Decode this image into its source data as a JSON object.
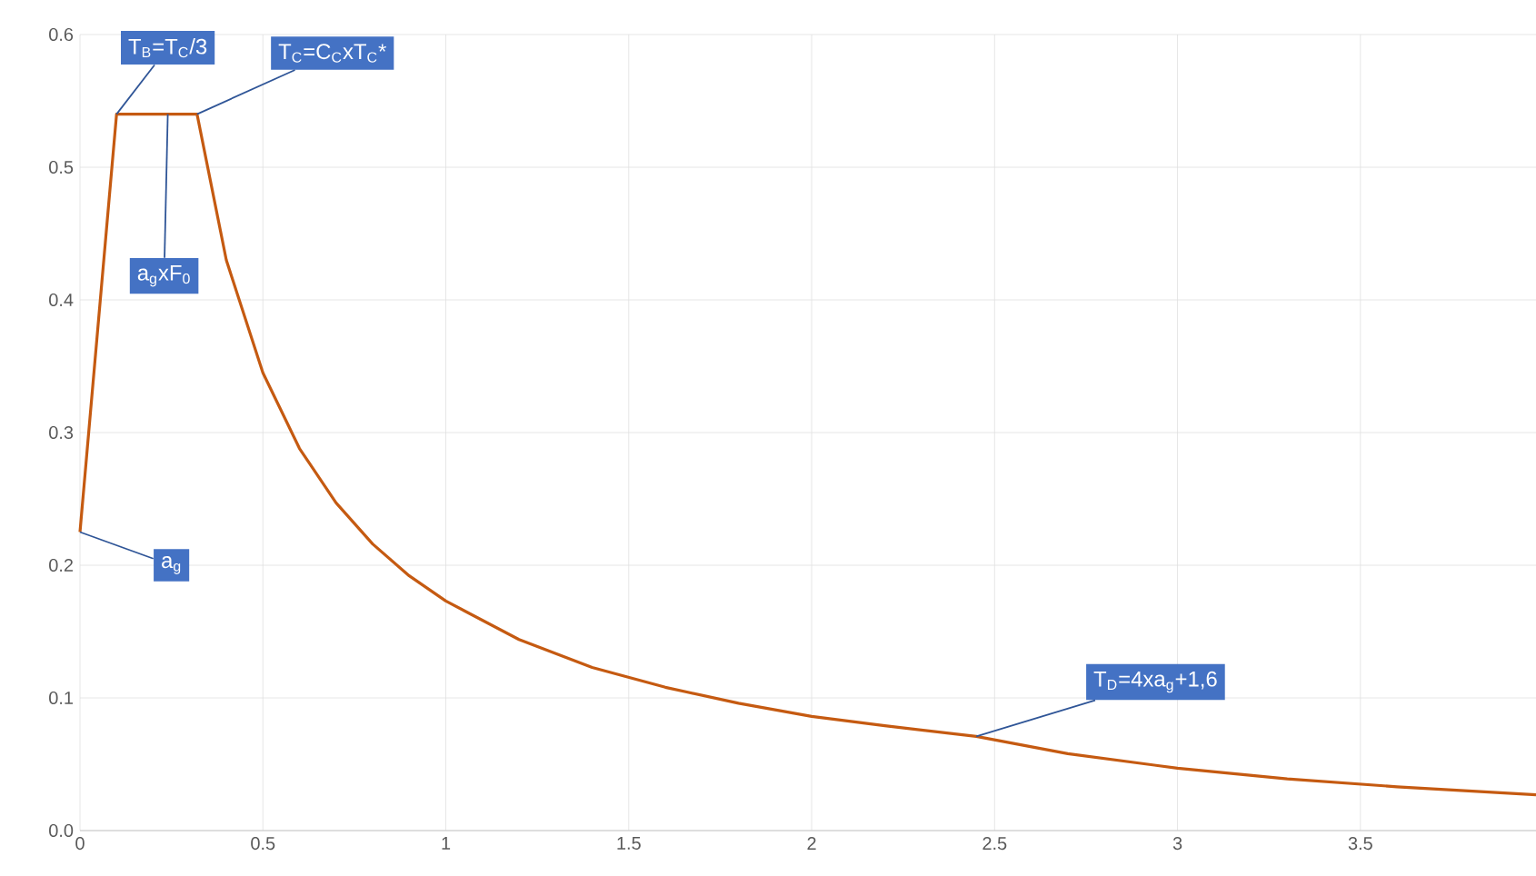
{
  "chart_data": {
    "type": "line",
    "x": [
      0,
      0.1,
      0.32,
      0.4,
      0.5,
      0.6,
      0.7,
      0.8,
      0.9,
      1.0,
      1.2,
      1.4,
      1.6,
      1.8,
      2.0,
      2.2,
      2.45,
      2.7,
      3.0,
      3.3,
      3.6,
      3.98
    ],
    "series": [
      {
        "color": "#c55a11",
        "values": [
          0.225,
          0.54,
          0.54,
          0.43,
          0.345,
          0.288,
          0.247,
          0.216,
          0.192,
          0.173,
          0.144,
          0.123,
          0.108,
          0.096,
          0.086,
          0.079,
          0.071,
          0.058,
          0.047,
          0.039,
          0.033,
          0.027
        ]
      }
    ],
    "xlim": [
      0,
      3.98
    ],
    "xticks": [
      0,
      0.5,
      1,
      1.5,
      2,
      2.5,
      3,
      3.5
    ],
    "ylim": [
      0,
      0.6
    ],
    "yticks": [
      {
        "value": 0,
        "label": "0.0"
      },
      0.1,
      0.2,
      0.3,
      0.4,
      0.5,
      0.6
    ],
    "grid": true,
    "marker": "none",
    "line_style": "solid",
    "annotations": [
      {
        "text": "T$_{B}$=T$_{C}$/3",
        "x": 0.1,
        "y": 0.54
      },
      {
        "text": "T$_{C}$=C$_{C}$xT$_{C}$*",
        "x": 0.32,
        "y": 0.54
      },
      {
        "text": "a$_{g}$xF$_{0}$",
        "x": 0.24,
        "y": 0.54
      },
      {
        "text": "a$_{g}$",
        "x": 0,
        "y": 0.225
      },
      {
        "text": "T$_{D}$=4xa$_{g}$+1,6",
        "x": 2.45,
        "y": 0.071
      }
    ]
  }
}
